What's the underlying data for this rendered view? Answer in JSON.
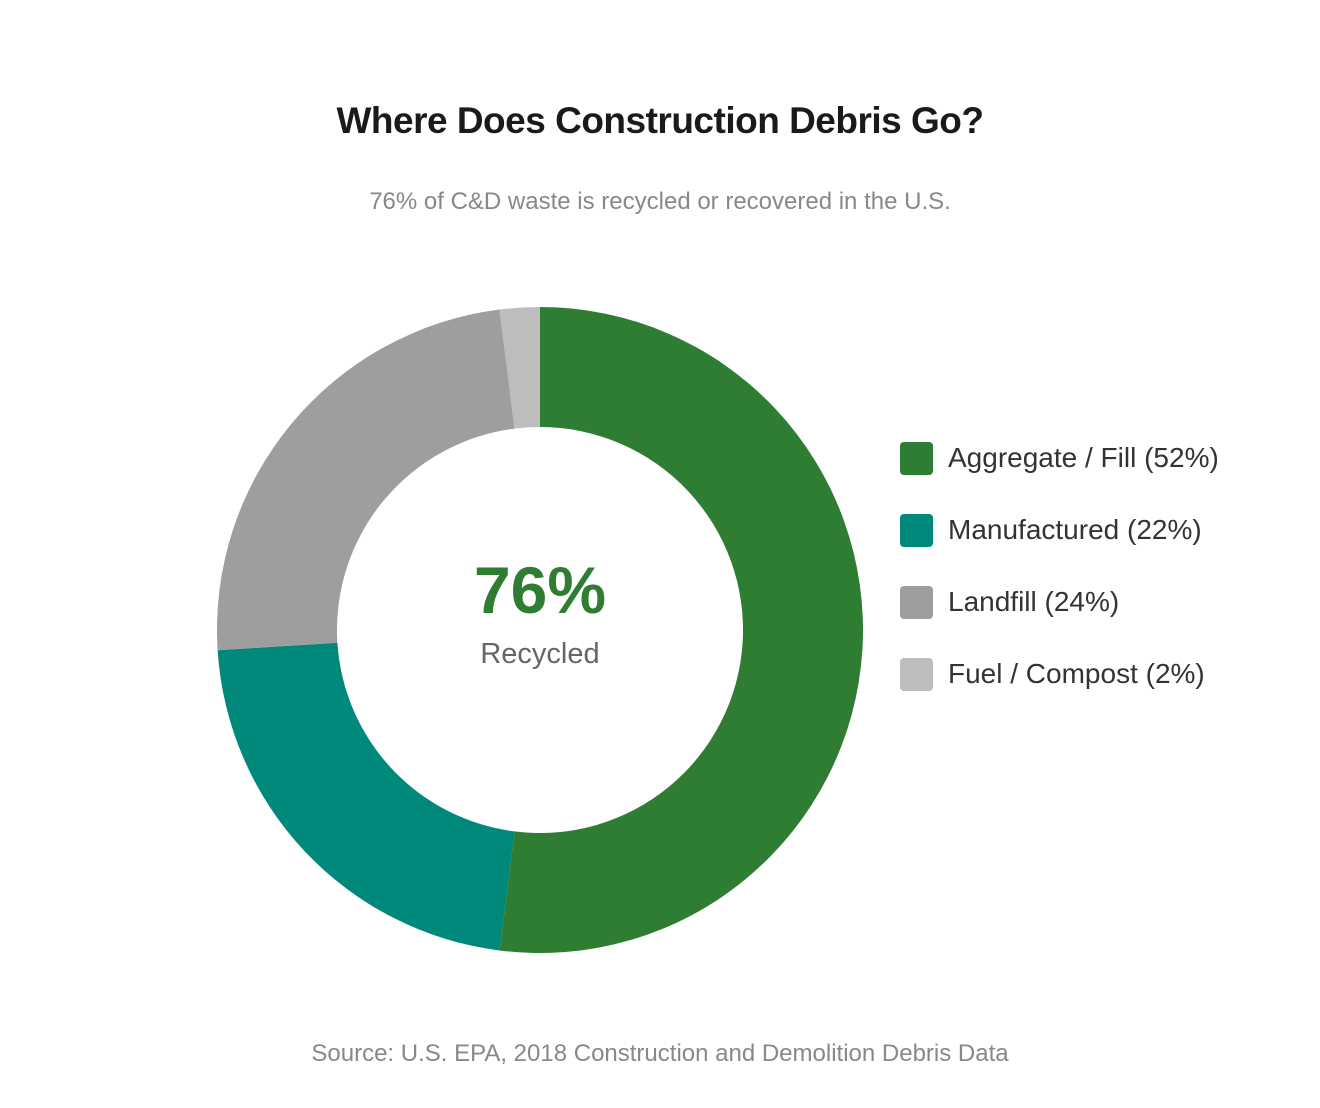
{
  "chart_data": {
    "type": "pie",
    "variant": "donut",
    "title": "Where Does Construction Debris Go?",
    "subtitle": "76% of C&D waste is recycled or recovered in the U.S.",
    "center": {
      "value": "76%",
      "label": "Recycled"
    },
    "categories": [
      "Aggregate / Fill",
      "Manufactured",
      "Landfill",
      "Fuel / Compost"
    ],
    "values": [
      52,
      22,
      24,
      2
    ],
    "colors": [
      "#2e7d32",
      "#00897b",
      "#9e9e9e",
      "#bdbdbd"
    ],
    "legend": [
      "Aggregate / Fill (52%)",
      "Manufactured (22%)",
      "Landfill (24%)",
      "Fuel / Compost (2%)"
    ],
    "legend_position": "right",
    "source": "Source: U.S. EPA, 2018 Construction and Demolition Debris Data"
  }
}
